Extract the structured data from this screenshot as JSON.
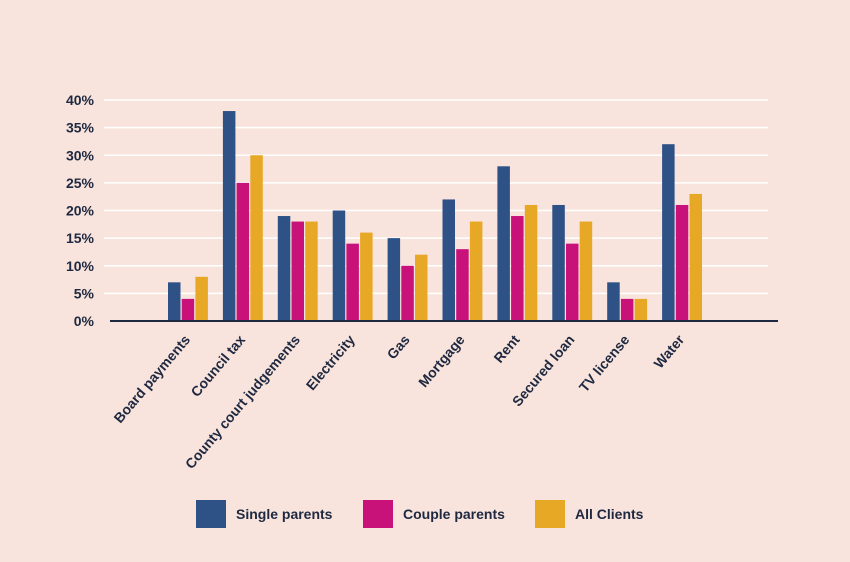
{
  "chart_data": {
    "type": "bar",
    "title": "",
    "xlabel": "",
    "ylabel": "",
    "ylim": [
      0,
      40
    ],
    "y_tick_labels": [
      "0%",
      "5%",
      "10%",
      "15%",
      "20%",
      "25%",
      "30%",
      "35%",
      "40%"
    ],
    "y_tick_values": [
      0,
      5,
      10,
      15,
      20,
      25,
      30,
      35,
      40
    ],
    "grid": true,
    "legend_position": "bottom",
    "categories": [
      "Board payments",
      "Council tax",
      "County court judgements",
      "Electricity",
      "Gas",
      "Mortgage",
      "Rent",
      "Secured loan",
      "TV license",
      "Water"
    ],
    "series": [
      {
        "name": "Single parents",
        "color": "#2e5186",
        "values": [
          7,
          38,
          19,
          20,
          15,
          22,
          28,
          21,
          7,
          32
        ]
      },
      {
        "name": "Couple parents",
        "color": "#c8127a",
        "values": [
          4,
          25,
          18,
          14,
          10,
          13,
          19,
          14,
          4,
          21
        ]
      },
      {
        "name": "All Clients",
        "color": "#e7a825",
        "values": [
          8,
          30,
          18,
          16,
          12,
          18,
          21,
          18,
          4,
          23
        ]
      }
    ]
  }
}
